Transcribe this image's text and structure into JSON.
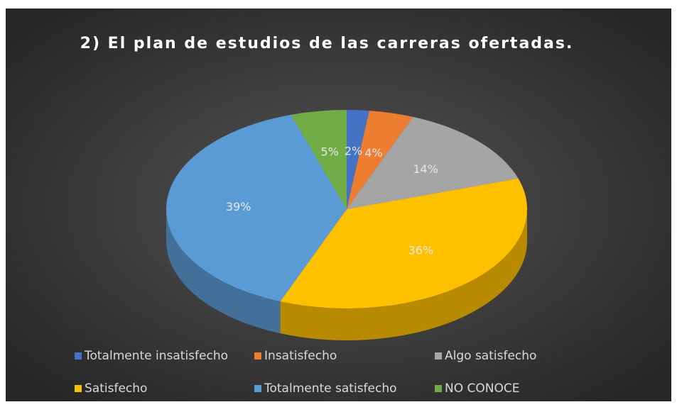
{
  "chart_data": {
    "type": "pie3d",
    "title": "2) El plan de estudios de las carreras ofertadas.",
    "categories": [
      "Totalmente insatisfecho",
      "Insatisfecho",
      "Algo satisfecho",
      "Satisfecho",
      "Totalmente satisfecho",
      "NO CONOCE"
    ],
    "values": [
      2,
      4,
      14,
      36,
      39,
      5
    ],
    "value_labels": [
      "2%",
      "4%",
      "14%",
      "36%",
      "39%",
      "5%"
    ],
    "colors": [
      "#4472c4",
      "#ed7d31",
      "#a5a5a5",
      "#ffc000",
      "#5b9bd5",
      "#70ad47"
    ],
    "legend": "bottom"
  }
}
